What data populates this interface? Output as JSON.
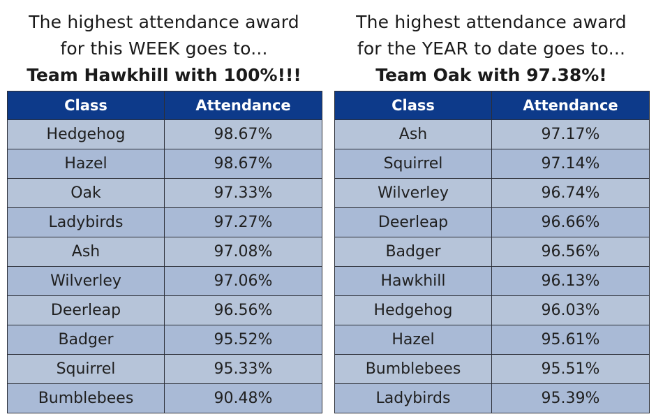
{
  "weekly": {
    "title_line1": "The highest attendance award",
    "title_line2": "for this WEEK goes to...",
    "winner": "Team Hawkhill with 100%!!!",
    "col_class": "Class",
    "col_attendance": "Attendance",
    "rows": [
      {
        "class": "Hedgehog",
        "attendance": "98.67%"
      },
      {
        "class": "Hazel",
        "attendance": "98.67%"
      },
      {
        "class": "Oak",
        "attendance": "97.33%"
      },
      {
        "class": "Ladybirds",
        "attendance": "97.27%"
      },
      {
        "class": "Ash",
        "attendance": "97.08%"
      },
      {
        "class": "Wilverley",
        "attendance": "97.06%"
      },
      {
        "class": "Deerleap",
        "attendance": "96.56%"
      },
      {
        "class": "Badger",
        "attendance": "95.52%"
      },
      {
        "class": "Squirrel",
        "attendance": "95.33%"
      },
      {
        "class": "Bumblebees",
        "attendance": "90.48%"
      }
    ]
  },
  "yearly": {
    "title_line1": "The highest attendance award",
    "title_line2": "for the YEAR to date goes to...",
    "winner": "Team Oak with 97.38%!",
    "col_class": "Class",
    "col_attendance": "Attendance",
    "rows": [
      {
        "class": "Ash",
        "attendance": "97.17%"
      },
      {
        "class": "Squirrel",
        "attendance": "97.14%"
      },
      {
        "class": "Wilverley",
        "attendance": "96.74%"
      },
      {
        "class": "Deerleap",
        "attendance": "96.66%"
      },
      {
        "class": "Badger",
        "attendance": "96.56%"
      },
      {
        "class": "Hawkhill",
        "attendance": "96.13%"
      },
      {
        "class": "Hedgehog",
        "attendance": "96.03%"
      },
      {
        "class": "Hazel",
        "attendance": "95.61%"
      },
      {
        "class": "Bumblebees",
        "attendance": "95.51%"
      },
      {
        "class": "Ladybirds",
        "attendance": "95.39%"
      }
    ]
  },
  "colors": {
    "header_bg": "#0d3a8a",
    "row_light": "#b6c4d9",
    "row_dark": "#a9bad6"
  }
}
